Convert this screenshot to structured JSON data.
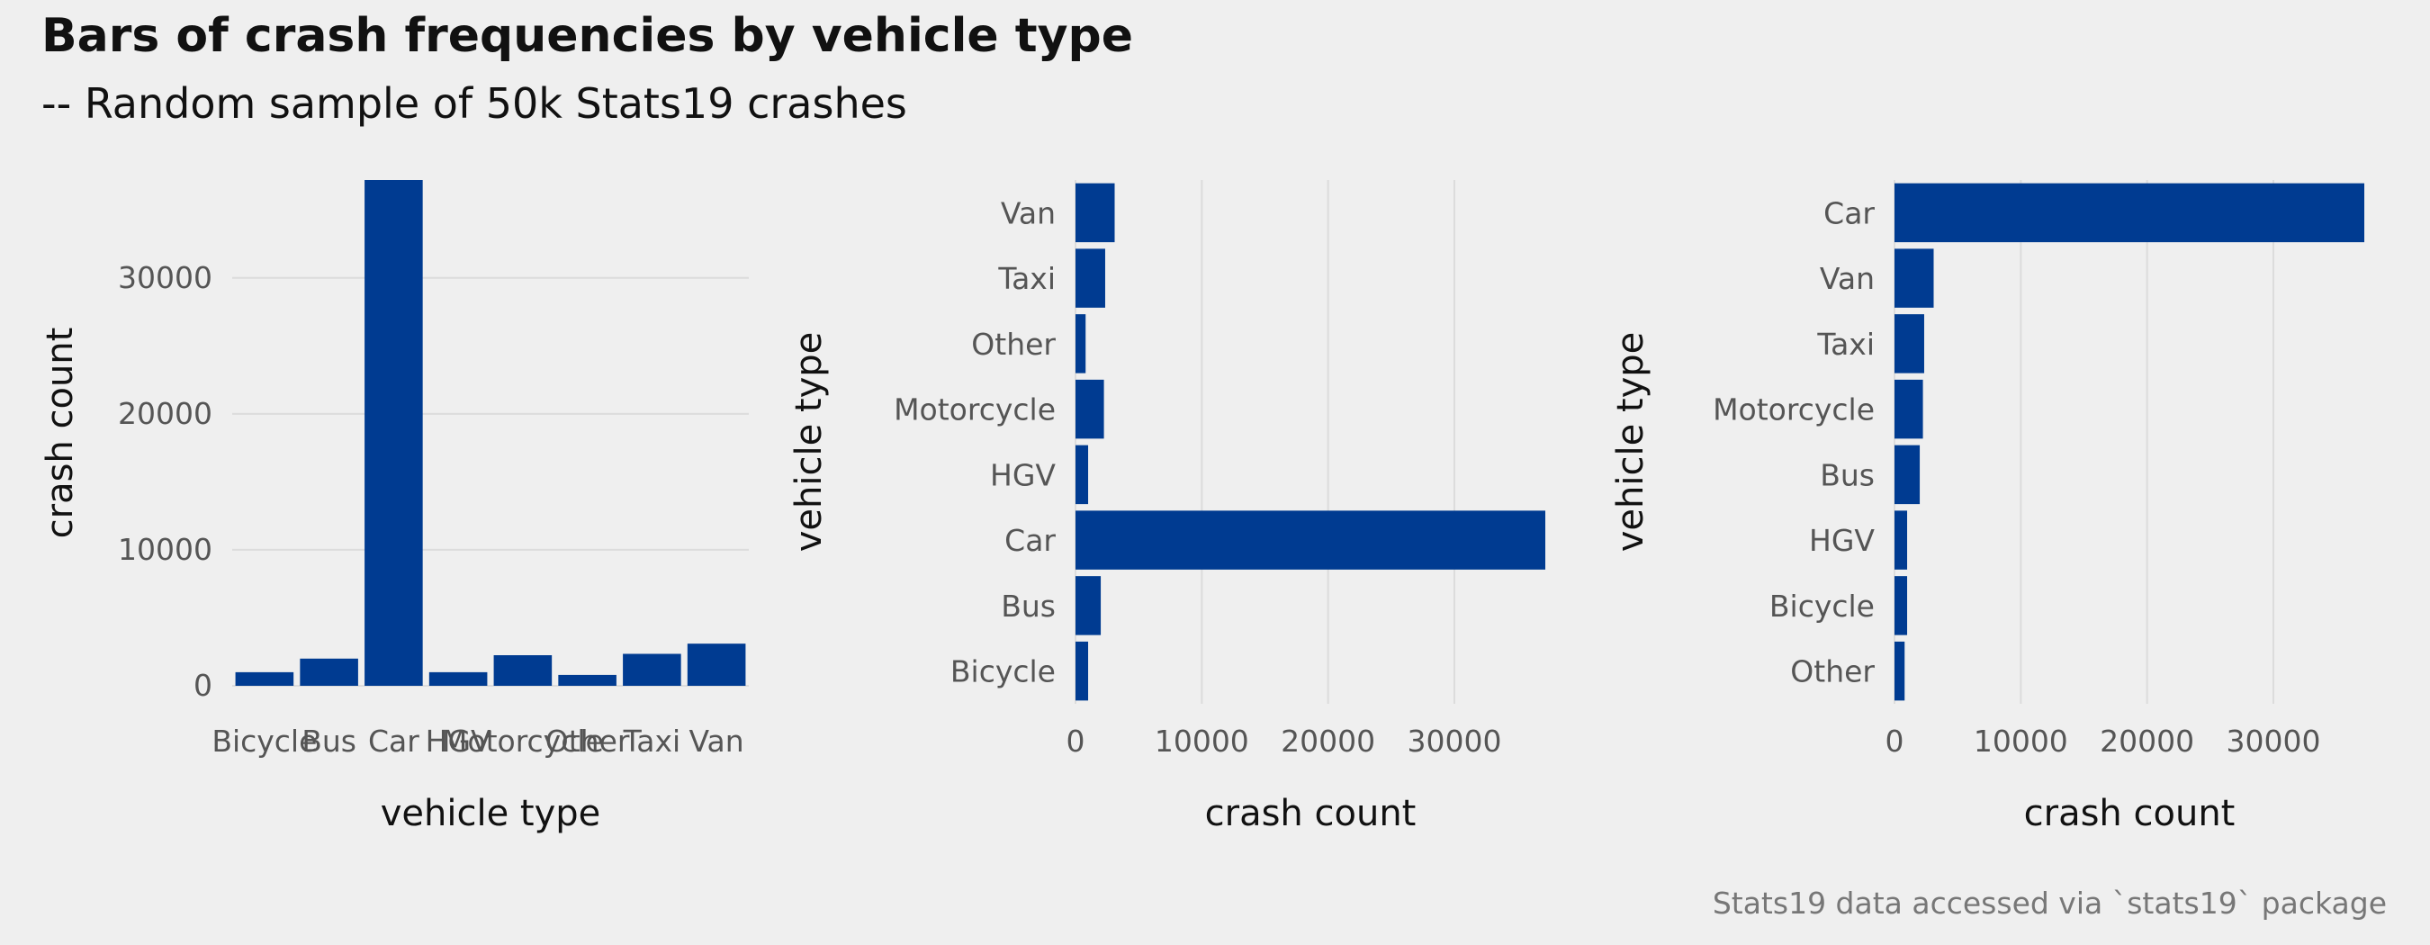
{
  "title": "Bars of crash frequencies by vehicle type",
  "subtitle": "-- Random sample of 50k Stats19 crashes",
  "caption": "Stats19 data accessed via `stats19` package",
  "colors": {
    "bar": "#003b91",
    "grid": "#dcdcdc",
    "background": "#efefef"
  },
  "chart_data": [
    {
      "type": "bar",
      "orientation": "vertical",
      "categories": [
        "Bicycle",
        "Bus",
        "Car",
        "HGV",
        "Motorcycle",
        "Other",
        "Taxi",
        "Van"
      ],
      "values": [
        1000,
        2000,
        37200,
        1000,
        2250,
        800,
        2350,
        3100
      ],
      "xlabel": "vehicle type",
      "ylabel": "crash count",
      "ylim": [
        0,
        37200
      ],
      "yticks": [
        0,
        10000,
        20000,
        30000
      ],
      "grid": true
    },
    {
      "type": "bar",
      "orientation": "horizontal",
      "categories": [
        "Bicycle",
        "Bus",
        "Car",
        "HGV",
        "Motorcycle",
        "Other",
        "Taxi",
        "Van"
      ],
      "values": [
        1000,
        2000,
        37200,
        1000,
        2250,
        800,
        2350,
        3100
      ],
      "xlabel": "crash count",
      "ylabel": "vehicle type",
      "xlim": [
        0,
        37200
      ],
      "xticks": [
        0,
        10000,
        20000,
        30000
      ],
      "grid": true
    },
    {
      "type": "bar",
      "orientation": "horizontal",
      "categories": [
        "Other",
        "Bicycle",
        "HGV",
        "Bus",
        "Motorcycle",
        "Taxi",
        "Van",
        "Car"
      ],
      "values": [
        800,
        1000,
        1000,
        2000,
        2250,
        2350,
        3100,
        37200
      ],
      "xlabel": "crash count",
      "ylabel": "vehicle type",
      "xlim": [
        0,
        37200
      ],
      "xticks": [
        0,
        10000,
        20000,
        30000
      ],
      "grid": true
    }
  ]
}
